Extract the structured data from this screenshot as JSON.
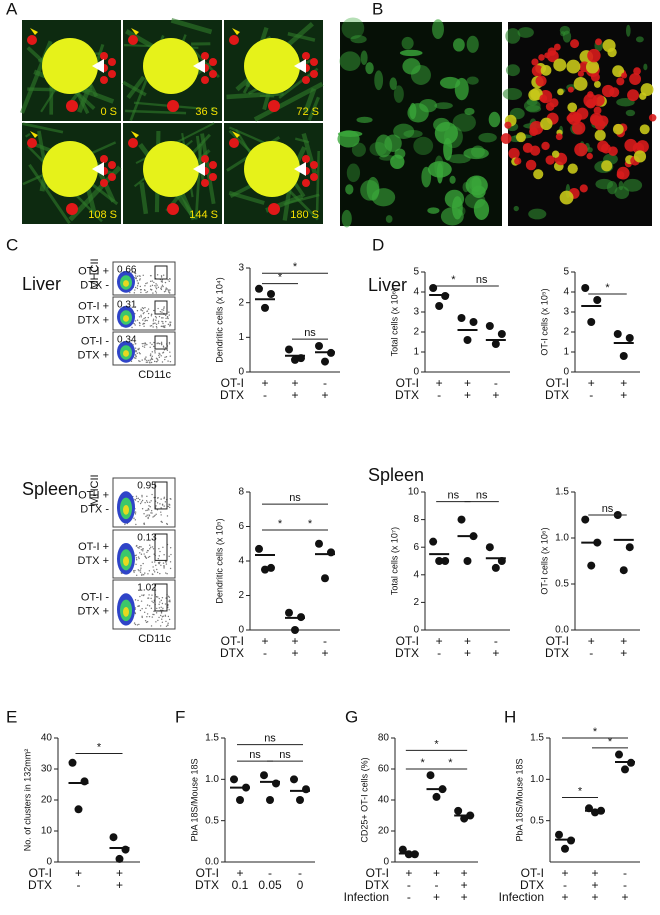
{
  "panel_labels": [
    "A",
    "B",
    "C",
    "D",
    "E",
    "F",
    "G",
    "H"
  ],
  "panel_a": {
    "timestamps": [
      "0 S",
      "36 S",
      "72 S",
      "108 S",
      "144 S",
      "180 S"
    ]
  },
  "panel_c_flow": [
    {
      "title": "Liver",
      "y_label": "MHCII",
      "x_label": "CD11c",
      "plots": [
        {
          "gate": 0.66,
          "conditions": [
            "OT-I +",
            "DTX -"
          ]
        },
        {
          "gate": 0.31,
          "conditions": [
            "OT-I +",
            "DTX +"
          ]
        },
        {
          "gate": 0.34,
          "conditions": [
            "OT-I -",
            "DTX +"
          ]
        }
      ]
    },
    {
      "title": "Spleen",
      "y_label": "MHCII",
      "x_label": "CD11c",
      "plots": [
        {
          "gate": 0.95,
          "conditions": [
            "OT-I +",
            "DTX -"
          ]
        },
        {
          "gate": 0.13,
          "conditions": [
            "OT-I +",
            "DTX +"
          ]
        },
        {
          "gate": 1.02,
          "conditions": [
            "OT-I -",
            "DTX +"
          ]
        }
      ]
    }
  ],
  "panel_d_titles": [
    "Liver",
    "Spleen"
  ],
  "chart_data": [
    {
      "type": "dot",
      "y_label": "Dendritic cells  (x 10⁴)",
      "ylim": [
        0,
        3
      ],
      "yticks": [
        0,
        1,
        2,
        3
      ],
      "points": [
        [
          2.4,
          2.25,
          1.85
        ],
        [
          0.65,
          0.4,
          0.35
        ],
        [
          0.75,
          0.55,
          0.3
        ]
      ],
      "means": [
        2.1,
        0.47,
        0.57
      ],
      "brackets": [
        {
          "from": 0,
          "to": 1,
          "y": 2.55,
          "label": "*"
        },
        {
          "from": 0,
          "to": 2,
          "y": 2.85,
          "label": "*"
        },
        {
          "from": 1,
          "to": 2,
          "y": 0.95,
          "label": "ns"
        }
      ],
      "conditions": [
        {
          "label": "OT-I",
          "values": [
            "+",
            "+",
            "-"
          ]
        },
        {
          "label": "DTX",
          "values": [
            "-",
            "+",
            "+"
          ]
        }
      ]
    },
    {
      "type": "dot",
      "y_label": "Dendritic cells  (x 10⁵)",
      "ylim": [
        0,
        8
      ],
      "yticks": [
        0,
        2,
        4,
        6,
        8
      ],
      "points": [
        [
          4.7,
          3.6,
          3.5
        ],
        [
          1.0,
          0.75,
          0.0
        ],
        [
          5.0,
          4.5,
          3.0
        ]
      ],
      "means": [
        4.35,
        0.7,
        4.4
      ],
      "brackets": [
        {
          "from": 0,
          "to": 1,
          "y": 5.8,
          "label": "*"
        },
        {
          "from": 1,
          "to": 2,
          "y": 5.8,
          "label": "*"
        },
        {
          "from": 0,
          "to": 2,
          "y": 7.3,
          "label": "ns"
        }
      ],
      "conditions": [
        {
          "label": "OT-I",
          "values": [
            "+",
            "+",
            "-"
          ]
        },
        {
          "label": "DTX",
          "values": [
            "-",
            "+",
            "+"
          ]
        }
      ]
    },
    {
      "type": "dot",
      "y_label": "Total cells  (x 10⁶)",
      "ylim": [
        0,
        5
      ],
      "yticks": [
        0,
        1,
        2,
        3,
        4,
        5
      ],
      "points": [
        [
          4.2,
          3.8,
          3.3
        ],
        [
          2.7,
          2.5,
          1.6
        ],
        [
          2.3,
          1.9,
          1.4
        ]
      ],
      "means": [
        3.85,
        2.1,
        1.6
      ],
      "brackets": [
        {
          "from": 0,
          "to": 1,
          "y": 4.3,
          "label": "*"
        },
        {
          "from": 1,
          "to": 2,
          "y": 4.3,
          "label": "ns"
        }
      ],
      "conditions": [
        {
          "label": "OT-I",
          "values": [
            "+",
            "+",
            "-"
          ]
        },
        {
          "label": "DTX",
          "values": [
            "-",
            "+",
            "+"
          ]
        }
      ]
    },
    {
      "type": "dot",
      "y_label": "OT-I cells  (x 10⁵)",
      "ylim": [
        0,
        5
      ],
      "yticks": [
        0,
        1,
        2,
        3,
        4,
        5
      ],
      "points": [
        [
          4.2,
          3.6,
          2.5
        ],
        [
          1.9,
          1.7,
          0.8
        ]
      ],
      "means": [
        3.3,
        1.45
      ],
      "brackets": [
        {
          "from": 0,
          "to": 1,
          "y": 3.9,
          "label": "*"
        }
      ],
      "conditions": [
        {
          "label": "OT-I",
          "values": [
            "+",
            "+"
          ]
        },
        {
          "label": "DTX",
          "values": [
            "-",
            "+"
          ]
        }
      ]
    },
    {
      "type": "dot",
      "y_label": "Total cells  (x 10⁷)",
      "ylim": [
        0,
        10
      ],
      "yticks": [
        0,
        2,
        4,
        6,
        8,
        10
      ],
      "points": [
        [
          6.4,
          5.0,
          5.0
        ],
        [
          8.0,
          6.8,
          5.0
        ],
        [
          6.0,
          5.0,
          4.5
        ]
      ],
      "means": [
        5.5,
        6.8,
        5.2
      ],
      "brackets": [
        {
          "from": 0,
          "to": 1,
          "y": 9.3,
          "label": "ns"
        },
        {
          "from": 1,
          "to": 2,
          "y": 9.3,
          "label": "ns"
        }
      ],
      "conditions": [
        {
          "label": "OT-I",
          "values": [
            "+",
            "+",
            "-"
          ]
        },
        {
          "label": "DTX",
          "values": [
            "-",
            "+",
            "+"
          ]
        }
      ]
    },
    {
      "type": "dot",
      "y_label": "OT-I cells  (x 10⁶)",
      "ylim": [
        0,
        1.5
      ],
      "yticks": [
        {
          "value": 0,
          "label": "0.0"
        },
        0.5,
        {
          "value": 1,
          "label": "1.0"
        },
        1.5
      ],
      "points": [
        [
          1.2,
          0.95,
          0.7
        ],
        [
          1.25,
          0.9,
          0.65
        ]
      ],
      "means": [
        0.95,
        0.98
      ],
      "brackets": [
        {
          "from": 0,
          "to": 1,
          "y": 1.25,
          "label": "ns"
        }
      ],
      "conditions": [
        {
          "label": "OT-I",
          "values": [
            "+",
            "+"
          ]
        },
        {
          "label": "DTX",
          "values": [
            "-",
            "+"
          ]
        }
      ]
    },
    {
      "type": "dot",
      "y_label": "No. of clusters in 132mm²",
      "ylim": [
        0,
        40
      ],
      "yticks": [
        0,
        10,
        20,
        30,
        40
      ],
      "points": [
        [
          32,
          26,
          17
        ],
        [
          8,
          4,
          1
        ]
      ],
      "means": [
        25.5,
        4.5
      ],
      "brackets": [
        {
          "from": 0,
          "to": 1,
          "y": 35,
          "label": "*"
        }
      ],
      "conditions": [
        {
          "label": "OT-I",
          "values": [
            "+",
            "+"
          ]
        },
        {
          "label": "DTX",
          "values": [
            "-",
            "+"
          ]
        }
      ]
    },
    {
      "type": "dot",
      "y_label": "PbA 18S/Mouse 18S",
      "ylim": [
        0,
        1.5
      ],
      "yticks": [
        {
          "value": 0,
          "label": "0.0"
        },
        0.5,
        {
          "value": 1,
          "label": "1.0"
        },
        1.5
      ],
      "points": [
        [
          1.0,
          0.9,
          0.75
        ],
        [
          1.05,
          0.95,
          0.75
        ],
        [
          1.0,
          0.88,
          0.75
        ]
      ],
      "means": [
        0.9,
        0.97,
        0.86
      ],
      "brackets": [
        {
          "from": 0,
          "to": 1,
          "y": 1.22,
          "label": "ns"
        },
        {
          "from": 1,
          "to": 2,
          "y": 1.22,
          "label": "ns"
        },
        {
          "from": 0,
          "to": 2,
          "y": 1.42,
          "label": "ns"
        }
      ],
      "conditions": [
        {
          "label": "OT-I",
          "values": [
            "+",
            "-",
            "-"
          ]
        },
        {
          "label": "DTX",
          "values": [
            "0.1",
            "0.05",
            "0"
          ]
        }
      ]
    },
    {
      "type": "dot",
      "y_label": "CD25+ OT-I cells (%)",
      "ylim": [
        0,
        80
      ],
      "yticks": [
        0,
        20,
        40,
        60,
        80
      ],
      "points": [
        [
          8,
          5,
          5
        ],
        [
          56,
          47,
          42
        ],
        [
          33,
          30,
          28
        ]
      ],
      "means": [
        5.5,
        47,
        30
      ],
      "brackets": [
        {
          "from": 0,
          "to": 1,
          "y": 60,
          "label": "*"
        },
        {
          "from": 1,
          "to": 2,
          "y": 60,
          "label": "*"
        },
        {
          "from": 0,
          "to": 2,
          "y": 72,
          "label": "*"
        }
      ],
      "conditions": [
        {
          "label": "OT-I",
          "values": [
            "+",
            "+",
            "+"
          ]
        },
        {
          "label": "DTX",
          "values": [
            "-",
            "-",
            "+"
          ]
        },
        {
          "label": "Infection",
          "values": [
            "-",
            "+",
            "+"
          ]
        }
      ]
    },
    {
      "type": "dot",
      "y_label": "PbA 18S/Mouse 18S",
      "ylim": [
        0,
        1.5
      ],
      "yticks": [
        0.5,
        {
          "value": 1,
          "label": "1.0"
        },
        1.5
      ],
      "points": [
        [
          0.33,
          0.26,
          0.16
        ],
        [
          0.65,
          0.62,
          0.6
        ],
        [
          1.3,
          1.2,
          1.12
        ]
      ],
      "means": [
        0.27,
        0.62,
        1.21
      ],
      "brackets": [
        {
          "from": 0,
          "to": 1,
          "y": 0.78,
          "label": "*"
        },
        {
          "from": 1,
          "to": 2,
          "y": 1.38,
          "label": "*"
        },
        {
          "from": 0,
          "to": 2,
          "y": 1.5,
          "label": "*"
        }
      ],
      "conditions": [
        {
          "label": "OT-I",
          "values": [
            "+",
            "+",
            "-"
          ]
        },
        {
          "label": "DTX",
          "values": [
            "-",
            "+",
            "-"
          ]
        },
        {
          "label": "Infection",
          "values": [
            "+",
            "+",
            "+"
          ]
        }
      ]
    }
  ]
}
